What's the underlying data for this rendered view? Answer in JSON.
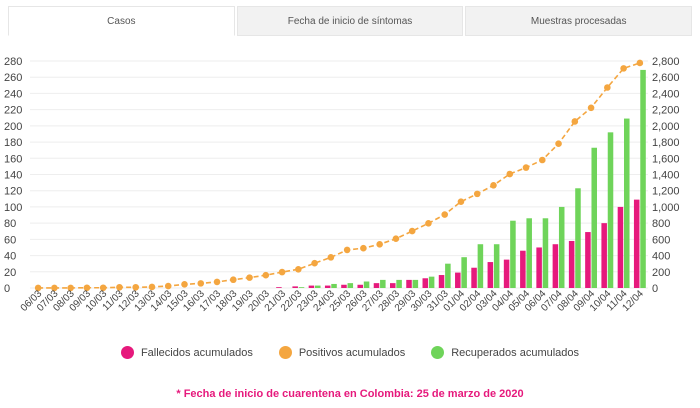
{
  "tabs": [
    {
      "label": "Casos",
      "active": true
    },
    {
      "label": "Fecha de inicio de síntomas",
      "active": false
    },
    {
      "label": "Muestras procesadas",
      "active": false
    }
  ],
  "chart_data": {
    "type": "bar",
    "categories": [
      "06/03",
      "07/03",
      "08/03",
      "09/03",
      "10/03",
      "11/03",
      "12/03",
      "13/03",
      "14/03",
      "15/03",
      "16/03",
      "17/03",
      "18/03",
      "19/03",
      "20/03",
      "21/03",
      "22/03",
      "23/03",
      "24/03",
      "25/03",
      "26/03",
      "27/03",
      "28/03",
      "29/03",
      "30/03",
      "31/03",
      "01/04",
      "02/04",
      "03/04",
      "04/04",
      "05/04",
      "06/04",
      "07/04",
      "08/04",
      "09/04",
      "10/04",
      "11/04",
      "12/04"
    ],
    "y_left": {
      "ticks": [
        "0",
        "20",
        "40",
        "60",
        "80",
        "100",
        "120",
        "140",
        "160",
        "180",
        "200",
        "220",
        "240",
        "260",
        "280"
      ],
      "ylim": [
        0,
        280
      ]
    },
    "y_right": {
      "ticks": [
        "0",
        "200",
        "400",
        "600",
        "800",
        "1,000",
        "1,200",
        "1,400",
        "1,600",
        "1,800",
        "2,000",
        "2,200",
        "2,400",
        "2,600",
        "2,800"
      ],
      "ylim": [
        0,
        2800
      ]
    },
    "series": [
      {
        "name": "Fallecidos acumulados",
        "type": "bar",
        "axis": "left",
        "color": "#e6197c",
        "values": [
          0,
          0,
          0,
          0,
          0,
          0,
          0,
          0,
          0,
          0,
          0,
          0,
          0,
          0,
          0,
          1,
          2,
          3,
          3,
          4,
          4,
          6,
          6,
          10,
          12,
          16,
          19,
          25,
          32,
          35,
          46,
          50,
          54,
          58,
          69,
          80,
          100,
          109
        ]
      },
      {
        "name": "Recuperados acumulados",
        "type": "bar",
        "axis": "left",
        "color": "#6fd45a",
        "values": [
          0,
          0,
          0,
          0,
          0,
          0,
          0,
          0,
          0,
          0,
          0,
          0,
          0,
          0,
          0,
          0,
          1,
          3,
          5,
          6,
          8,
          10,
          10,
          10,
          14,
          30,
          38,
          54,
          54,
          83,
          86,
          86,
          100,
          123,
          173,
          192,
          209,
          269
        ]
      },
      {
        "name": "Positivos acumulados",
        "type": "line",
        "axis": "right",
        "color": "#f4a640",
        "values": [
          1,
          1,
          1,
          3,
          3,
          9,
          9,
          13,
          24,
          45,
          57,
          75,
          102,
          128,
          158,
          196,
          231,
          306,
          378,
          470,
          491,
          539,
          608,
          702,
          798,
          906,
          1065,
          1161,
          1267,
          1406,
          1485,
          1579,
          1780,
          2054,
          2223,
          2473,
          2709,
          2776
        ]
      }
    ]
  },
  "legend": [
    {
      "label": "Fallecidos acumulados",
      "color": "#e6197c"
    },
    {
      "label": "Positivos acumulados",
      "color": "#f4a640"
    },
    {
      "label": "Recuperados acumulados",
      "color": "#6fd45a"
    }
  ],
  "note": "* Fecha de inicio de cuarentena en Colombia: 25 de marzo de 2020"
}
